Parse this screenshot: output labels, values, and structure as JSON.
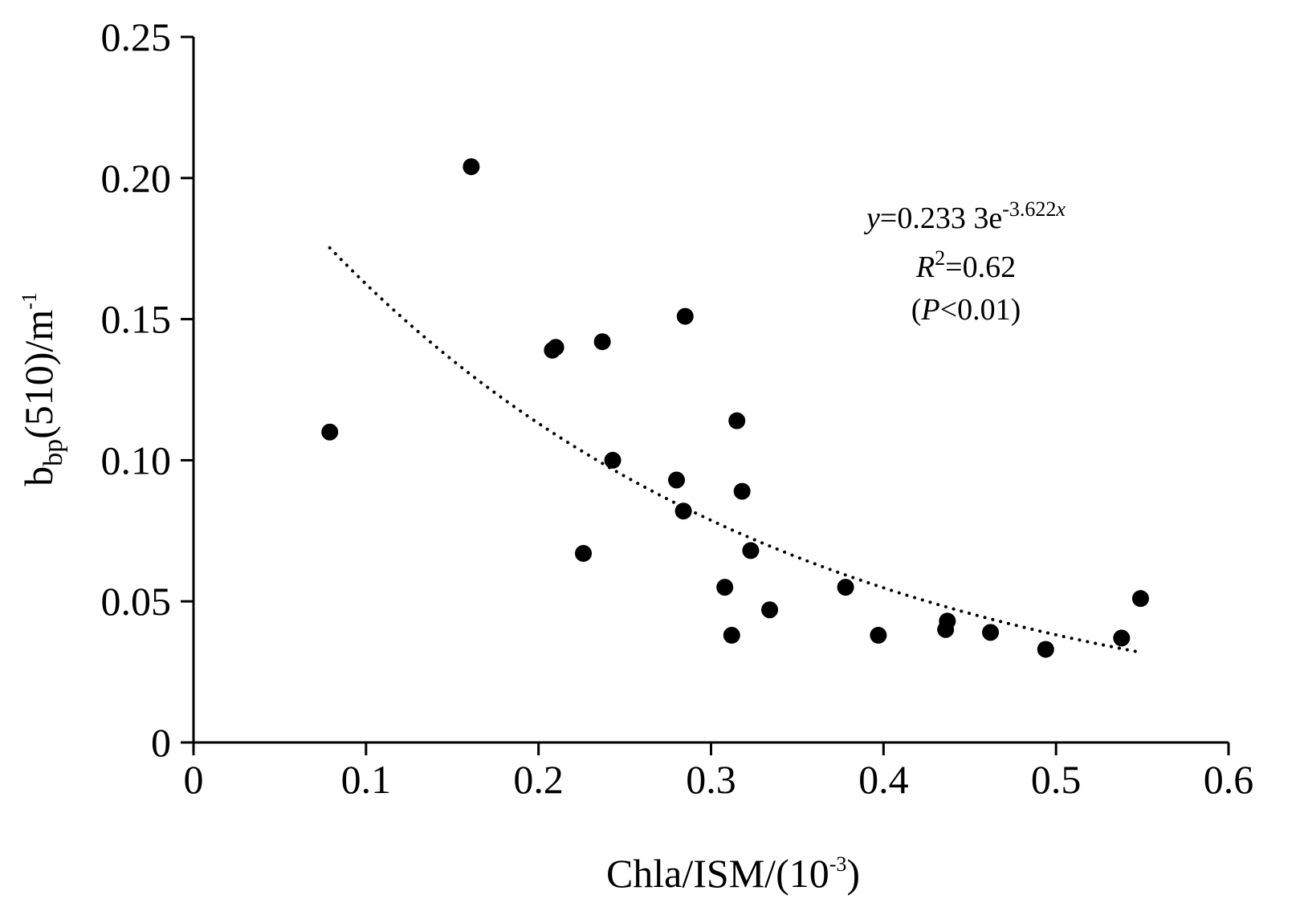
{
  "chart_data": {
    "type": "scatter",
    "xlabel": {
      "base": "Chla/ISM/(10",
      "sup": "-3",
      "tail": ")"
    },
    "ylabel": {
      "base": "b",
      "sub": "bp",
      "mid": "(510)/m",
      "sup": "-1"
    },
    "xlim": [
      0,
      0.6
    ],
    "ylim": [
      0,
      0.25
    ],
    "x_ticks": [
      "0",
      "0.1",
      "0.2",
      "0.3",
      "0.4",
      "0.5",
      "0.6"
    ],
    "y_ticks": [
      "0",
      "0.05",
      "0.10",
      "0.15",
      "0.20",
      "0.25"
    ],
    "grid": false,
    "series": [
      {
        "x": [
          0.079,
          0.161,
          0.208,
          0.21,
          0.226,
          0.237,
          0.243,
          0.28,
          0.284,
          0.285,
          0.308,
          0.312,
          0.315,
          0.318,
          0.323,
          0.334,
          0.378,
          0.397,
          0.436,
          0.437,
          0.462,
          0.494,
          0.538,
          0.549
        ],
        "y": [
          0.11,
          0.204,
          0.139,
          0.14,
          0.067,
          0.142,
          0.1,
          0.093,
          0.082,
          0.151,
          0.055,
          0.038,
          0.114,
          0.089,
          0.068,
          0.047,
          0.055,
          0.038,
          0.04,
          0.043,
          0.039,
          0.033,
          0.037,
          0.051
        ]
      }
    ],
    "trendline": {
      "type": "exponential",
      "a": 0.2333,
      "b": -3.622,
      "x_range": [
        0.079,
        0.549
      ],
      "style": "dotted"
    },
    "annotations": {
      "equation": {
        "y": "y",
        "eq": "=0.233 3e",
        "sup": "-3.622",
        "supx": "x"
      },
      "r2": {
        "r": "R",
        "sup": "2",
        "rest": "=0.62"
      },
      "p": {
        "open": "(",
        "p": "P",
        "rest": "<0.01)"
      }
    }
  }
}
